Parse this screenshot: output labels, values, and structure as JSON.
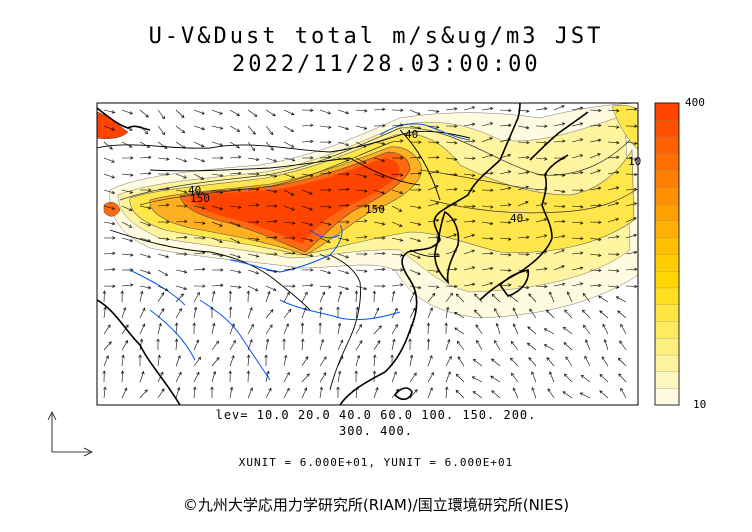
{
  "title": {
    "line1": "U-V&Dust total m/s&ug/m3 JST",
    "line2": "2022/11/28.03:00:00"
  },
  "legend": {
    "lev_line1": "lev= 10.0 20.0 40.0 60.0 100. 150. 200.",
    "lev_line2": "300. 400.",
    "levels": [
      10,
      20,
      40,
      60,
      100,
      150,
      200,
      300,
      400
    ],
    "unit_line": "XUNIT = 6.000E+01, YUNIT = 6.000E+01"
  },
  "colorbar": {
    "max_label": "400",
    "min_label": "10",
    "colors": [
      "#fffbe0",
      "#fff7c0",
      "#fff3a0",
      "#ffef80",
      "#ffeb60",
      "#ffe640",
      "#ffe020",
      "#ffd700",
      "#ffcc00",
      "#ffc000",
      "#ffb000",
      "#ffa000",
      "#ff9000",
      "#ff8000",
      "#ff7000",
      "#ff6000",
      "#ff5000",
      "#ff4400"
    ]
  },
  "contour_labels": [
    "40",
    "150",
    "150",
    "40",
    "40",
    "10"
  ],
  "copyright": "©九州大学応用力学研究所(RIAM)/国立環境研究所(NIES)",
  "colors": {
    "coast": "#000000",
    "river": "#0055ff",
    "border": "#000000",
    "wind": "#000000"
  }
}
